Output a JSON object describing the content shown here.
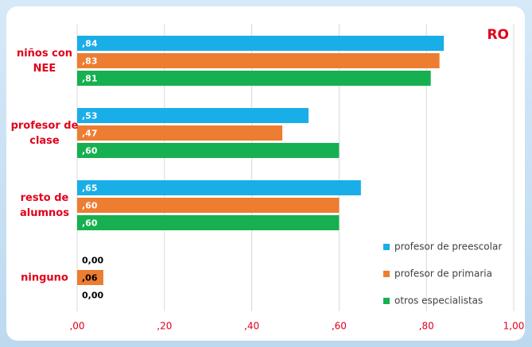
{
  "chart_data": {
    "type": "bar",
    "orientation": "horizontal",
    "annotation": "RO",
    "categories": [
      "niños con NEE",
      "profesor de clase",
      "resto de alumnos",
      "ninguno"
    ],
    "series": [
      {
        "name": "profesor de preescolar",
        "color": "#1aaee8",
        "values": [
          0.84,
          0.53,
          0.65,
          0
        ],
        "value_labels": [
          ",84",
          ",53",
          ",65",
          "0,00"
        ]
      },
      {
        "name": "profesor de primaria",
        "color": "#ed7d31",
        "values": [
          0.83,
          0.47,
          0.6,
          0.06
        ],
        "value_labels": [
          ",83",
          ",47",
          ",60",
          ",06"
        ]
      },
      {
        "name": "otros especialistas",
        "color": "#17b050",
        "values": [
          0.81,
          0.6,
          0.6,
          0
        ],
        "value_labels": [
          ",81",
          ",60",
          ",60",
          "0,00"
        ]
      }
    ],
    "xlim": [
      0,
      1
    ],
    "xticks": [
      {
        "value": 0,
        "label": ",00"
      },
      {
        "value": 0.2,
        "label": ",20"
      },
      {
        "value": 0.4,
        "label": ",40"
      },
      {
        "value": 0.6,
        "label": ",60"
      },
      {
        "value": 0.8,
        "label": ",80"
      },
      {
        "value": 1,
        "label": "1,00"
      }
    ],
    "grid": true,
    "legend": "lower right"
  }
}
